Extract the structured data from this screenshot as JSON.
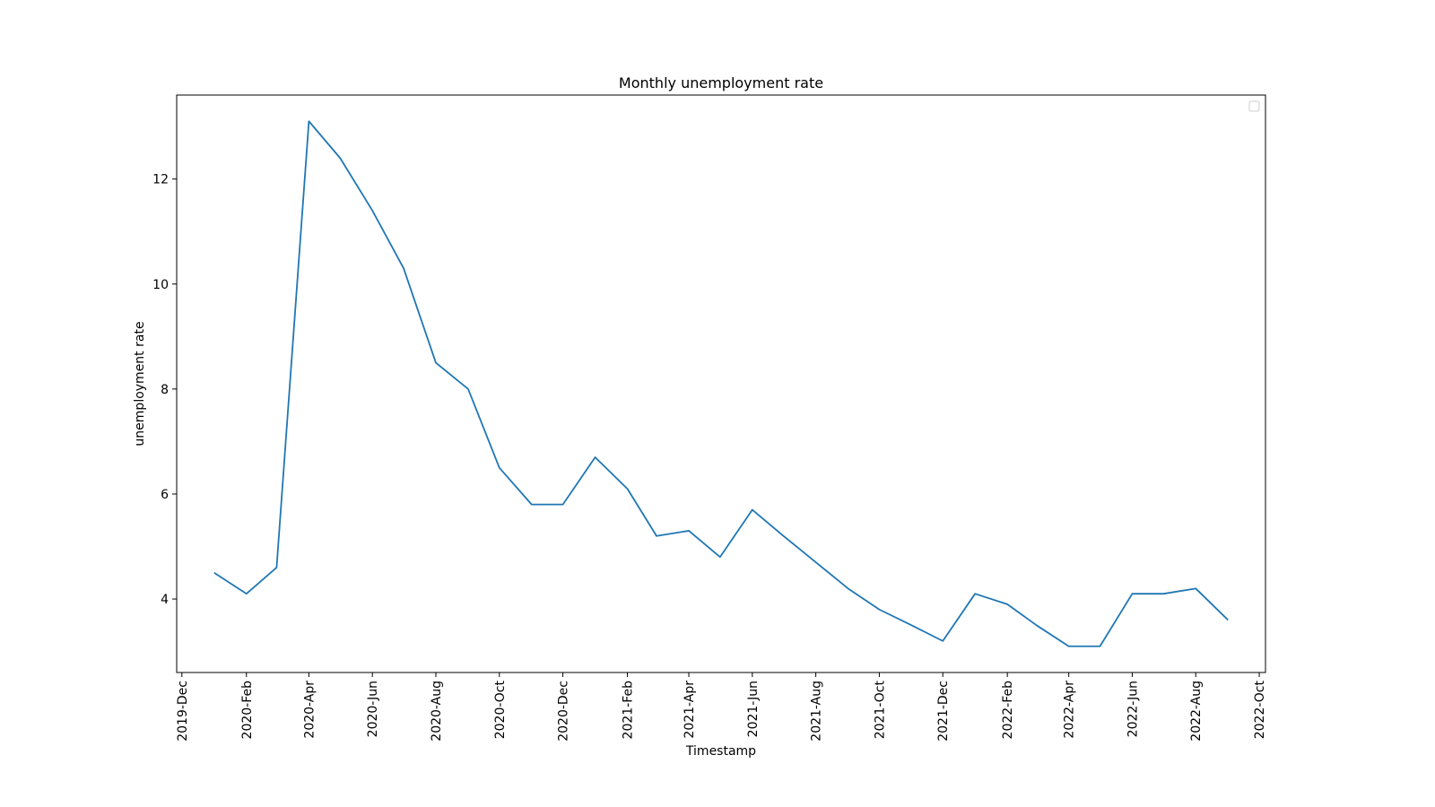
{
  "chart_data": {
    "type": "line",
    "title": "Monthly unemployment rate",
    "xlabel": "Timestamp",
    "ylabel": "unemployment rate",
    "x_ticks": [
      "2019-Dec",
      "2020-Feb",
      "2020-Apr",
      "2020-Jun",
      "2020-Aug",
      "2020-Oct",
      "2020-Dec",
      "2021-Feb",
      "2021-Apr",
      "2021-Jun",
      "2021-Aug",
      "2021-Oct",
      "2021-Dec",
      "2022-Feb",
      "2022-Apr",
      "2022-Jun",
      "2022-Aug",
      "2022-Oct"
    ],
    "y_ticks": [
      4,
      6,
      8,
      10,
      12
    ],
    "xlim": [
      "2019-11-26",
      "2022-10-07"
    ],
    "ylim": [
      2.6,
      13.6
    ],
    "grid": false,
    "legend": {
      "placement": "top-right",
      "entries": []
    },
    "series": [
      {
        "color": "#1f77b4",
        "x": [
          "2020-01-01",
          "2020-02-01",
          "2020-03-01",
          "2020-04-01",
          "2020-05-01",
          "2020-06-01",
          "2020-07-01",
          "2020-08-01",
          "2020-09-01",
          "2020-10-01",
          "2020-11-01",
          "2020-12-01",
          "2021-01-01",
          "2021-02-01",
          "2021-03-01",
          "2021-04-01",
          "2021-05-01",
          "2021-06-01",
          "2021-07-01",
          "2021-08-01",
          "2021-09-01",
          "2021-10-01",
          "2021-11-01",
          "2021-12-01",
          "2022-01-01",
          "2022-02-01",
          "2022-03-01",
          "2022-04-01",
          "2022-05-01",
          "2022-06-01",
          "2022-07-01",
          "2022-08-01",
          "2022-09-01"
        ],
        "values": [
          4.5,
          4.1,
          4.6,
          13.1,
          12.4,
          11.4,
          10.3,
          8.5,
          8.0,
          6.5,
          5.8,
          5.8,
          6.7,
          6.1,
          5.2,
          5.3,
          4.8,
          5.7,
          5.2,
          4.7,
          4.2,
          3.8,
          3.5,
          3.2,
          4.1,
          3.9,
          3.5,
          3.1,
          3.1,
          4.1,
          4.1,
          4.2,
          3.6
        ]
      }
    ]
  }
}
